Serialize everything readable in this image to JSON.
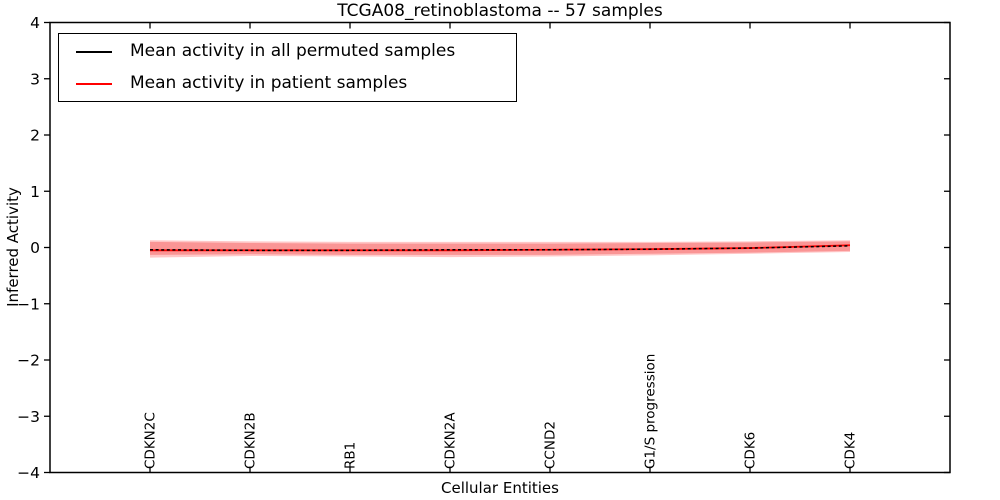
{
  "chart_data": {
    "type": "line",
    "title": "TCGA08_retinoblastoma -- 57 samples",
    "xlabel": "Cellular Entities",
    "ylabel": "Inferred Activity",
    "ylim": [
      -4,
      4
    ],
    "yticks": [
      4,
      3,
      2,
      1,
      0,
      -1,
      -2,
      -3,
      -4
    ],
    "grid": false,
    "legend_position": "upper left",
    "categories": [
      "CDKN2C",
      "CDKN2B",
      "RB1",
      "CDKN2A",
      "CCND2",
      "G1/S progression",
      "CDK6",
      "CDK4"
    ],
    "series": [
      {
        "name": "Mean activity in all permuted samples",
        "color": "#000000",
        "linestyle": "dashed",
        "values": [
          -0.04,
          -0.05,
          -0.05,
          -0.04,
          -0.04,
          -0.03,
          -0.01,
          0.03
        ]
      },
      {
        "name": "Mean activity in patient samples",
        "color": "#ff0000",
        "linestyle": "solid",
        "values": [
          -0.05,
          -0.05,
          -0.05,
          -0.05,
          -0.04,
          -0.03,
          -0.01,
          0.04
        ]
      }
    ],
    "bands": [
      {
        "name": "std band outer",
        "color": "#ff0000",
        "opacity": 0.22,
        "upper": [
          0.13,
          0.11,
          0.1,
          0.1,
          0.1,
          0.1,
          0.11,
          0.13
        ],
        "lower": [
          -0.18,
          -0.15,
          -0.16,
          -0.17,
          -0.16,
          -0.14,
          -0.11,
          -0.08
        ]
      },
      {
        "name": "std band inner",
        "color": "#ee2222",
        "opacity": 0.3,
        "upper": [
          0.1,
          0.08,
          0.07,
          0.07,
          0.07,
          0.08,
          0.09,
          0.11
        ],
        "lower": [
          -0.13,
          -0.12,
          -0.13,
          -0.13,
          -0.13,
          -0.11,
          -0.09,
          -0.06
        ]
      }
    ]
  }
}
